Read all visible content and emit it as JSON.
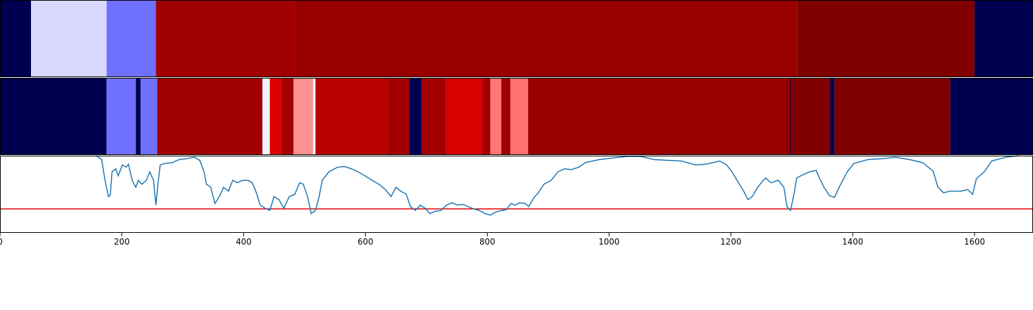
{
  "chart_data": [
    {
      "type": "strip",
      "xlim": [
        0,
        1696
      ],
      "edges": [
        0,
        51,
        175,
        256,
        484,
        1309,
        1600,
        1696
      ],
      "colors": [
        "#000050",
        "#d8d8ff",
        "#7070ff",
        "#a00000",
        "#980000",
        "#800000",
        "#000050"
      ]
    },
    {
      "type": "strip",
      "xlim": [
        0,
        1696
      ],
      "edges": [
        0,
        175,
        223,
        231,
        258,
        431,
        443,
        462,
        482,
        514,
        518,
        637,
        672,
        692,
        732,
        792,
        805,
        823,
        838,
        867,
        1296,
        1298,
        1363,
        1370,
        1560,
        1696
      ],
      "colors": [
        "#000050",
        "#7070ff",
        "#000050",
        "#7070ff",
        "#a00000",
        "#f4f4ff",
        "#dd0000",
        "#a00000",
        "#ff9090",
        "#f0f0ff",
        "#bb0000",
        "#a00000",
        "#000050",
        "#a00000",
        "#d80000",
        "#a00000",
        "#ff7878",
        "#a00000",
        "#ff7070",
        "#980000",
        "#000050",
        "#800000",
        "#000050",
        "#800000",
        "#000050"
      ]
    },
    {
      "type": "line",
      "xlim": [
        0,
        1696
      ],
      "ylim": [
        0,
        1
      ],
      "xticks": [
        0,
        200,
        400,
        600,
        800,
        1000,
        1200,
        1400,
        1600
      ],
      "color": "#1f77b4",
      "hline": {
        "value": 0.31,
        "color": "#e00000"
      },
      "x": [
        158,
        167,
        172,
        178,
        181,
        184,
        190,
        194,
        201,
        207,
        211,
        217,
        223,
        227,
        233,
        240,
        246,
        252,
        256,
        259,
        263,
        271,
        283,
        294,
        305,
        319,
        328,
        335,
        339,
        346,
        353,
        360,
        367,
        375,
        382,
        390,
        398,
        407,
        414,
        421,
        427,
        435,
        443,
        450,
        458,
        466,
        475,
        484,
        492,
        498,
        505,
        511,
        518,
        524,
        529,
        540,
        554,
        565,
        577,
        588,
        599,
        611,
        622,
        633,
        642,
        650,
        658,
        667,
        674,
        682,
        690,
        698,
        706,
        715,
        724,
        733,
        742,
        751,
        760,
        769,
        778,
        787,
        796,
        805,
        814,
        823,
        831,
        839,
        846,
        853,
        862,
        868,
        876,
        884,
        893,
        905,
        916,
        927,
        938,
        950,
        961,
        984,
        1006,
        1029,
        1052,
        1074,
        1097,
        1119,
        1142,
        1159,
        1170,
        1182,
        1193,
        1201,
        1210,
        1221,
        1228,
        1235,
        1244,
        1253,
        1257,
        1266,
        1278,
        1287,
        1292,
        1298,
        1304,
        1308,
        1315,
        1329,
        1340,
        1346,
        1353,
        1362,
        1370,
        1379,
        1391,
        1402,
        1425,
        1447,
        1470,
        1493,
        1515,
        1532,
        1540,
        1549,
        1560,
        1577,
        1589,
        1597,
        1603,
        1617,
        1628,
        1651,
        1673
      ],
      "values": [
        1.0,
        0.95,
        0.7,
        0.47,
        0.49,
        0.79,
        0.83,
        0.74,
        0.88,
        0.85,
        0.89,
        0.68,
        0.59,
        0.68,
        0.63,
        0.68,
        0.79,
        0.68,
        0.36,
        0.61,
        0.88,
        0.9,
        0.91,
        0.95,
        0.96,
        0.98,
        0.94,
        0.79,
        0.63,
        0.59,
        0.38,
        0.47,
        0.59,
        0.54,
        0.68,
        0.65,
        0.68,
        0.68,
        0.65,
        0.52,
        0.36,
        0.32,
        0.29,
        0.47,
        0.43,
        0.32,
        0.47,
        0.5,
        0.65,
        0.63,
        0.47,
        0.25,
        0.29,
        0.47,
        0.68,
        0.79,
        0.85,
        0.86,
        0.83,
        0.79,
        0.74,
        0.68,
        0.63,
        0.56,
        0.47,
        0.59,
        0.54,
        0.5,
        0.34,
        0.29,
        0.36,
        0.32,
        0.25,
        0.28,
        0.29,
        0.36,
        0.39,
        0.36,
        0.37,
        0.34,
        0.31,
        0.29,
        0.25,
        0.23,
        0.27,
        0.29,
        0.3,
        0.38,
        0.36,
        0.39,
        0.38,
        0.34,
        0.45,
        0.52,
        0.63,
        0.68,
        0.79,
        0.83,
        0.82,
        0.85,
        0.91,
        0.95,
        0.97,
        0.99,
        0.99,
        0.95,
        0.94,
        0.93,
        0.88,
        0.89,
        0.91,
        0.93,
        0.88,
        0.8,
        0.68,
        0.54,
        0.43,
        0.47,
        0.59,
        0.68,
        0.71,
        0.65,
        0.68,
        0.59,
        0.34,
        0.29,
        0.52,
        0.71,
        0.74,
        0.79,
        0.81,
        0.7,
        0.59,
        0.48,
        0.46,
        0.61,
        0.79,
        0.9,
        0.95,
        0.96,
        0.98,
        0.95,
        0.91,
        0.8,
        0.59,
        0.52,
        0.54,
        0.54,
        0.56,
        0.5,
        0.7,
        0.8,
        0.93,
        0.98,
        1.0
      ]
    }
  ]
}
